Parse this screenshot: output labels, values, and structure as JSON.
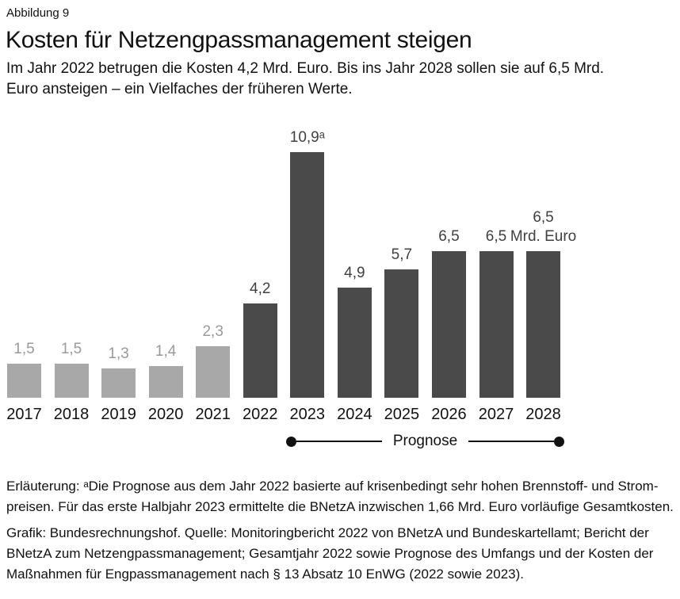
{
  "header": {
    "figure_label": "Abbildung 9",
    "title": "Kosten für Netzengpassmanagement steigen",
    "subtitle_lines": [
      "Im Jahr 2022 betrugen die Kosten 4,2 Mrd. Euro. Bis ins Jahr 2028 sollen sie auf 6,5 Mrd.",
      "Euro ansteigen – ein Vielfaches der früheren Werte."
    ]
  },
  "chart_data": {
    "type": "bar",
    "title": "Kosten für Netzengpassmanagement steigen",
    "ylabel": "Mrd. Euro",
    "unit_label": "Mrd. Euro",
    "categories": [
      "2017",
      "2018",
      "2019",
      "2020",
      "2021",
      "2022",
      "2023",
      "2024",
      "2025",
      "2026",
      "2027",
      "2028"
    ],
    "values": [
      1.5,
      1.5,
      1.3,
      1.4,
      2.3,
      4.2,
      10.9,
      4.9,
      5.7,
      6.5,
      6.5,
      6.5
    ],
    "value_labels": [
      "1,5",
      "1,5",
      "1,3",
      "1,4",
      "2,3",
      "4,2",
      "10,9ᵃ",
      "4,9",
      "5,7",
      "6,5",
      "6,5",
      "6,5"
    ],
    "footnote_marker": "a",
    "color_key": [
      "historical",
      "historical",
      "historical",
      "historical",
      "historical",
      "current",
      "current",
      "current",
      "current",
      "current",
      "current",
      "current"
    ],
    "colors": {
      "historical": "#a8a8a8",
      "current": "#4a4a4a"
    },
    "label_colors": {
      "historical": "#9a9a9a",
      "current": "#404040"
    },
    "forecast": {
      "label": "Prognose",
      "from": "2023",
      "to": "2028"
    },
    "ylim": [
      0,
      12
    ],
    "grid": false,
    "legend": "none"
  },
  "footer": {
    "note_lines": [
      "Erläuterung: ᵃDie Prognose aus dem Jahr 2022 basierte auf krisenbedingt sehr hohen Brennstoff- und Strom-",
      "preisen. Für das erste Halbjahr 2023 ermittelte die BNetzA inzwischen 1,66 Mrd. Euro vorläufige Gesamtkosten."
    ],
    "source_lines": [
      "Grafik: Bundesrechnungshof. Quelle: Monitoringbericht 2022 von BNetzA und Bundeskartellamt; Bericht der",
      "BNetzA zum Netzengpassmanagement; Gesamtjahr 2022 sowie Prognose des Umfangs und der Kosten der",
      "Maßnahmen für Engpassmanagement nach § 13 Absatz 10 EnWG (2022 sowie 2023)."
    ]
  }
}
